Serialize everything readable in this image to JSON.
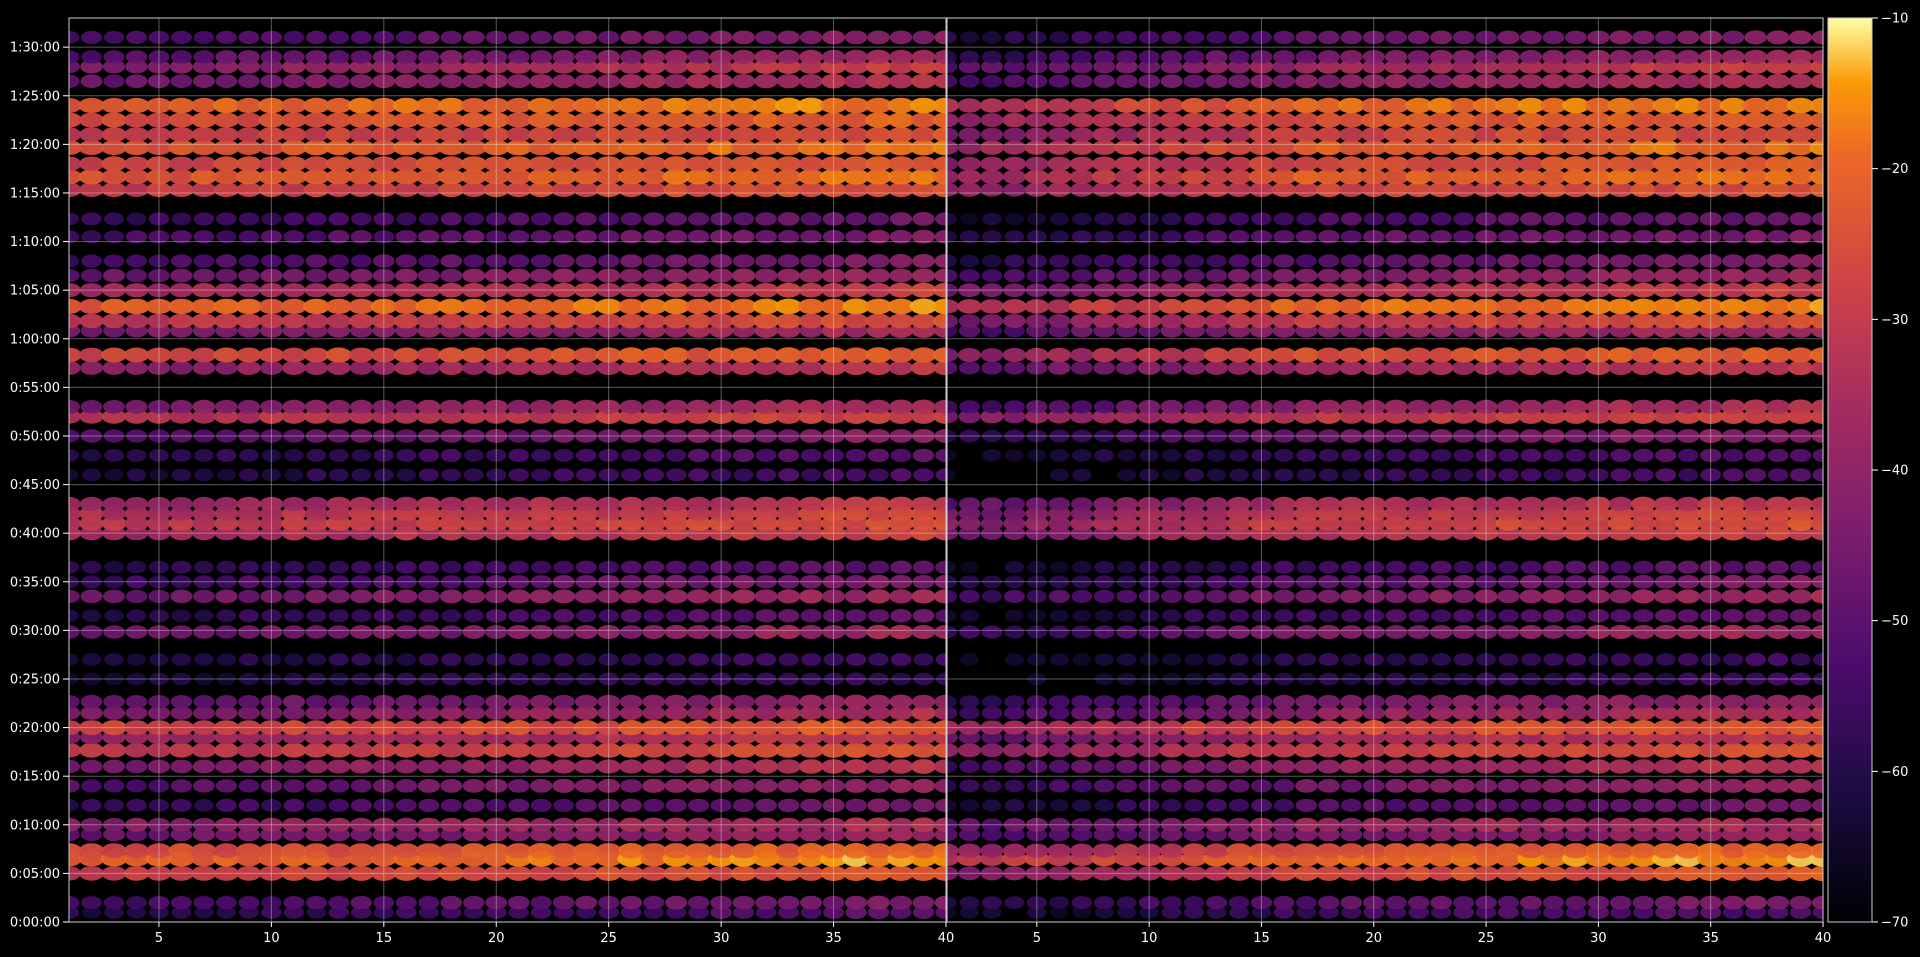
{
  "chart_data": {
    "type": "heatmap",
    "title": "",
    "xlabel": "",
    "ylabel": "",
    "panels": [
      {
        "name": "",
        "xlim": [
          1,
          40
        ],
        "xticks": [
          5,
          10,
          15,
          20,
          25,
          30,
          35,
          40
        ]
      },
      {
        "name": "",
        "xlim": [
          1,
          40
        ],
        "xticks": [
          5,
          10,
          15,
          20,
          25,
          30,
          35,
          40
        ]
      }
    ],
    "ylim_seconds": [
      0,
      5580
    ],
    "yticks": [
      "0:00:00",
      "0:05:00",
      "0:10:00",
      "0:15:00",
      "0:20:00",
      "0:25:00",
      "0:30:00",
      "0:35:00",
      "0:40:00",
      "0:45:00",
      "0:50:00",
      "0:55:00",
      "1:00:00",
      "1:05:00",
      "1:10:00",
      "1:15:00",
      "1:20:00",
      "1:25:00",
      "1:30:00"
    ],
    "colorbar": {
      "colormap": "inferno",
      "range": [
        -70,
        -10
      ],
      "ticks": [
        -10,
        -20,
        -30,
        -40,
        -50,
        -60,
        -70
      ]
    },
    "grid": true,
    "bands": [
      {
        "time": "0:01:00",
        "level": -60,
        "growth": 10
      },
      {
        "time": "0:02:00",
        "level": -55,
        "growth": 12
      },
      {
        "time": "0:05:00",
        "level": -30,
        "growth": 8,
        "right_offset": -12
      },
      {
        "time": "0:06:30",
        "level": -22,
        "growth": 8,
        "right_offset": -10
      },
      {
        "time": "0:07:20",
        "level": -26,
        "growth": 6,
        "right_offset": -14
      },
      {
        "time": "0:09:00",
        "level": -48,
        "growth": 10
      },
      {
        "time": "0:10:00",
        "level": -42,
        "growth": 8,
        "right_offset": -8
      },
      {
        "time": "0:12:00",
        "level": -58,
        "growth": 14
      },
      {
        "time": "0:14:00",
        "level": -52,
        "growth": 14
      },
      {
        "time": "0:16:00",
        "level": -45,
        "growth": 14,
        "right_offset": -10
      },
      {
        "time": "0:17:40",
        "level": -32,
        "growth": 8,
        "right_offset": -10
      },
      {
        "time": "0:19:00",
        "level": -40,
        "growth": 10,
        "right_offset": -10
      },
      {
        "time": "0:20:00",
        "level": -28,
        "growth": 6,
        "right_offset": -10
      },
      {
        "time": "0:21:30",
        "level": -45,
        "growth": 12,
        "right_offset": -10
      },
      {
        "time": "0:22:40",
        "level": -50,
        "growth": 12,
        "right_offset": -10
      },
      {
        "time": "0:25:00",
        "level": -62,
        "growth": 6
      },
      {
        "time": "0:27:00",
        "level": -62,
        "growth": 8
      },
      {
        "time": "0:29:50",
        "level": -50,
        "growth": 14,
        "right_offset": -8
      },
      {
        "time": "0:31:30",
        "level": -60,
        "growth": 12
      },
      {
        "time": "0:33:30",
        "level": -48,
        "growth": 12,
        "right_offset": -8
      },
      {
        "time": "0:35:00",
        "level": -56,
        "growth": 14
      },
      {
        "time": "0:36:30",
        "level": -60,
        "growth": 12
      },
      {
        "time": "0:40:00",
        "level": -36,
        "growth": 8,
        "right_offset": -10
      },
      {
        "time": "0:41:00",
        "level": -32,
        "growth": 8,
        "right_offset": -10
      },
      {
        "time": "0:42:00",
        "level": -34,
        "growth": 8,
        "right_offset": -12
      },
      {
        "time": "0:43:00",
        "level": -38,
        "growth": 8,
        "right_offset": -12
      },
      {
        "time": "0:46:00",
        "level": -62,
        "growth": 10
      },
      {
        "time": "0:48:00",
        "level": -60,
        "growth": 10
      },
      {
        "time": "0:50:00",
        "level": -52,
        "growth": 12,
        "right_offset": -8
      },
      {
        "time": "0:52:00",
        "level": -34,
        "growth": 8,
        "right_offset": -10
      },
      {
        "time": "0:53:00",
        "level": -45,
        "growth": 12,
        "right_offset": -10
      },
      {
        "time": "0:57:00",
        "level": -42,
        "growth": 12,
        "right_offset": -8
      },
      {
        "time": "0:58:20",
        "level": -28,
        "growth": 8,
        "right_offset": -14
      },
      {
        "time": "1:00:50",
        "level": -45,
        "growth": 10,
        "right_offset": -8
      },
      {
        "time": "1:01:50",
        "level": -32,
        "growth": 8,
        "right_offset": -14
      },
      {
        "time": "1:03:20",
        "level": -22,
        "growth": 6,
        "right_offset": -14
      },
      {
        "time": "1:05:00",
        "level": -38,
        "growth": 10,
        "right_offset": -8
      },
      {
        "time": "1:06:30",
        "level": -48,
        "growth": 12
      },
      {
        "time": "1:08:00",
        "level": -55,
        "growth": 12
      },
      {
        "time": "1:10:30",
        "level": -55,
        "growth": 12
      },
      {
        "time": "1:12:20",
        "level": -58,
        "growth": 12
      },
      {
        "time": "1:15:20",
        "level": -30,
        "growth": 6,
        "right_offset": -12
      },
      {
        "time": "1:16:40",
        "level": -24,
        "growth": 6,
        "right_offset": -14
      },
      {
        "time": "1:18:00",
        "level": -28,
        "growth": 6,
        "right_offset": -14
      },
      {
        "time": "1:19:40",
        "level": -24,
        "growth": 6,
        "right_offset": -14
      },
      {
        "time": "1:21:00",
        "level": -30,
        "growth": 6,
        "right_offset": -14
      },
      {
        "time": "1:22:30",
        "level": -26,
        "growth": 6,
        "right_offset": -14
      },
      {
        "time": "1:24:00",
        "level": -22,
        "growth": 6,
        "right_offset": -12
      },
      {
        "time": "1:26:30",
        "level": -48,
        "growth": 16
      },
      {
        "time": "1:28:00",
        "level": -45,
        "growth": 18
      },
      {
        "time": "1:29:00",
        "level": -52,
        "growth": 16
      },
      {
        "time": "1:31:00",
        "level": -55,
        "growth": 14
      }
    ]
  }
}
